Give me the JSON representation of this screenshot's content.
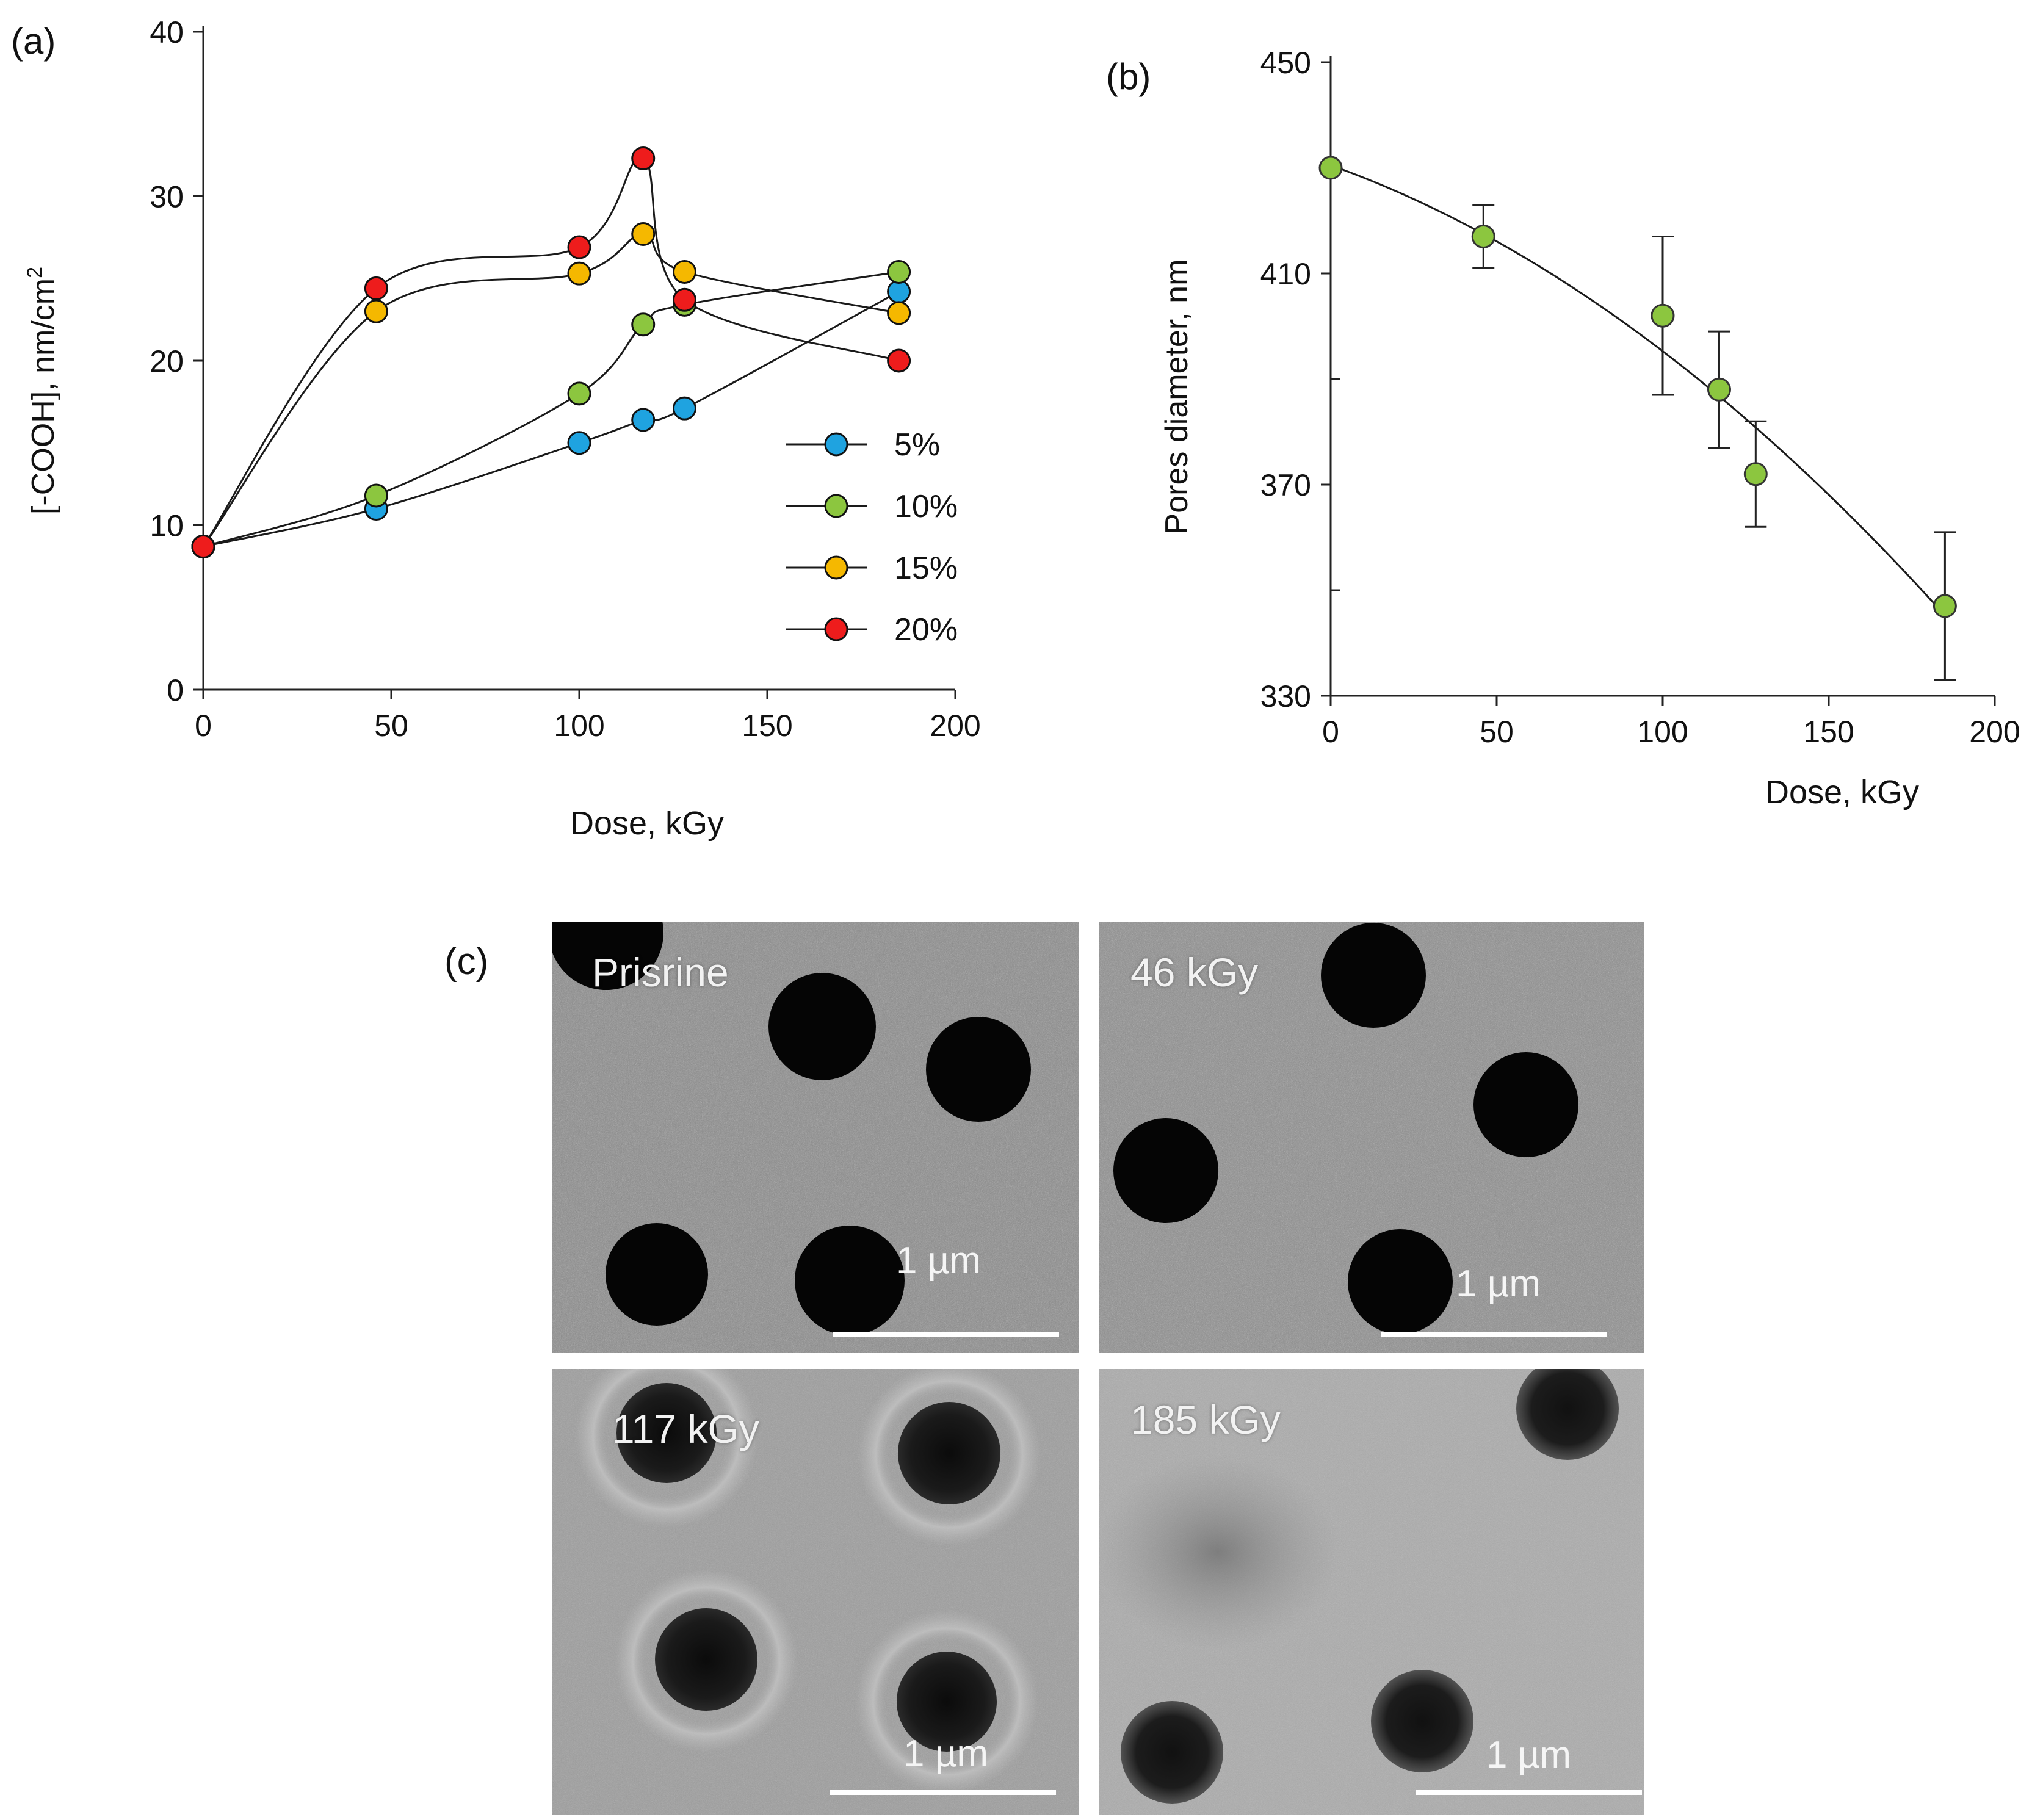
{
  "chart_data": [
    {
      "panel_label": "(a)",
      "type": "line",
      "xlabel": "Dose, kGy",
      "ylabel": "[-COOH], nm/cm",
      "ylabel_sup": "2",
      "xlim": [
        0,
        200
      ],
      "ylim": [
        0,
        40
      ],
      "xticks": [
        0,
        50,
        100,
        150,
        200
      ],
      "yticks": [
        0,
        10,
        20,
        30,
        40
      ],
      "legend_position": "right-center",
      "series": [
        {
          "name": "5%",
          "color": "#1fa3e0",
          "x": [
            0,
            46,
            100,
            117,
            128,
            185
          ],
          "y": [
            8.7,
            11.0,
            15.0,
            16.4,
            17.1,
            24.2
          ]
        },
        {
          "name": "10%",
          "color": "#8cc63f",
          "x": [
            0,
            46,
            100,
            117,
            128,
            185
          ],
          "y": [
            8.7,
            11.8,
            18.0,
            22.2,
            23.4,
            25.4
          ]
        },
        {
          "name": "15%",
          "color": "#f5b800",
          "x": [
            0,
            46,
            100,
            117,
            128,
            185
          ],
          "y": [
            8.7,
            23.0,
            25.3,
            27.7,
            25.4,
            22.9
          ]
        },
        {
          "name": "20%",
          "color": "#ee1c1c",
          "x": [
            0,
            46,
            100,
            117,
            128,
            185
          ],
          "y": [
            8.7,
            24.4,
            26.9,
            32.3,
            23.7,
            20.0
          ]
        }
      ]
    },
    {
      "panel_label": "(b)",
      "type": "scatter",
      "xlabel": "Dose, kGy",
      "ylabel": "Pores diameter, nm",
      "xlim": [
        0,
        200
      ],
      "ylim": [
        330,
        450
      ],
      "xticks": [
        0,
        50,
        100,
        150,
        200
      ],
      "yticks": [
        330,
        370,
        410,
        450
      ],
      "trendline": "quadratic fit",
      "series": [
        {
          "name": "pore diameter",
          "color": "#8cc63f",
          "x": [
            0,
            46,
            100,
            117,
            128,
            185
          ],
          "y": [
            430,
            417,
            402,
            388,
            372,
            347
          ],
          "err": [
            0,
            6,
            15,
            11,
            10,
            14
          ]
        }
      ]
    }
  ],
  "sem_images": {
    "panel_label": "(c)",
    "scale_bar_text": "1 µm",
    "images": [
      {
        "label": "Prisrine"
      },
      {
        "label": "46 kGy"
      },
      {
        "label": "117 kGy"
      },
      {
        "label": "185 kGy"
      }
    ]
  }
}
